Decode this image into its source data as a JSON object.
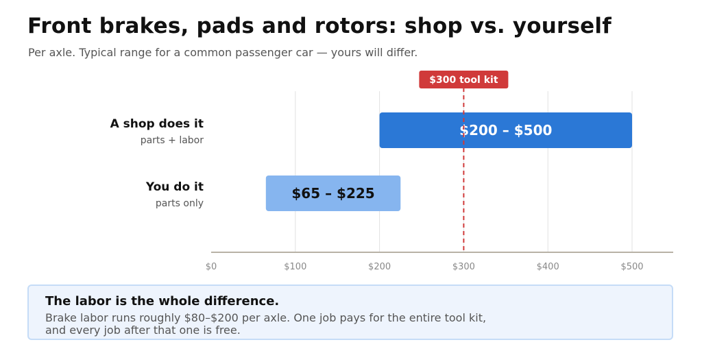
{
  "header": {
    "title": "Front brakes, pads and rotors: shop vs. yourself",
    "subtitle": "Per axle. Typical range for a common passenger car — yours will differ."
  },
  "chart_data": {
    "type": "bar",
    "orientation": "horizontal-range",
    "categories": [
      {
        "label": "A shop does it",
        "sublabel": "parts + labor",
        "low": 200,
        "high": 500,
        "bar_label": "$200 – $500",
        "color": "#2b78d6",
        "label_color": "#ffffff"
      },
      {
        "label": "You do it",
        "sublabel": "parts only",
        "low": 65,
        "high": 225,
        "bar_label": "$65 – $225",
        "color": "#86b5ef",
        "label_color": "#111111"
      }
    ],
    "xlim": [
      0,
      550
    ],
    "xticks": [
      0,
      100,
      200,
      300,
      400,
      500
    ],
    "xtick_labels": [
      "$0",
      "$100",
      "$200",
      "$300",
      "$400",
      "$500"
    ],
    "grid": "vertical",
    "reference_line": {
      "value": 300,
      "label": "$300 tool kit",
      "color": "#d03a3a"
    }
  },
  "callout": {
    "title": "The labor is the whole difference.",
    "body_line1": "Brake labor runs roughly $80–$200 per axle. One job pays for the entire tool kit,",
    "body_line2": "and every job after that one is free."
  },
  "colors": {
    "axis": "#b8b2a6",
    "grid": "#e2e2e2",
    "tick_text": "#888888",
    "callout_bg": "#eef4fd",
    "callout_border": "#c5dcf7"
  }
}
